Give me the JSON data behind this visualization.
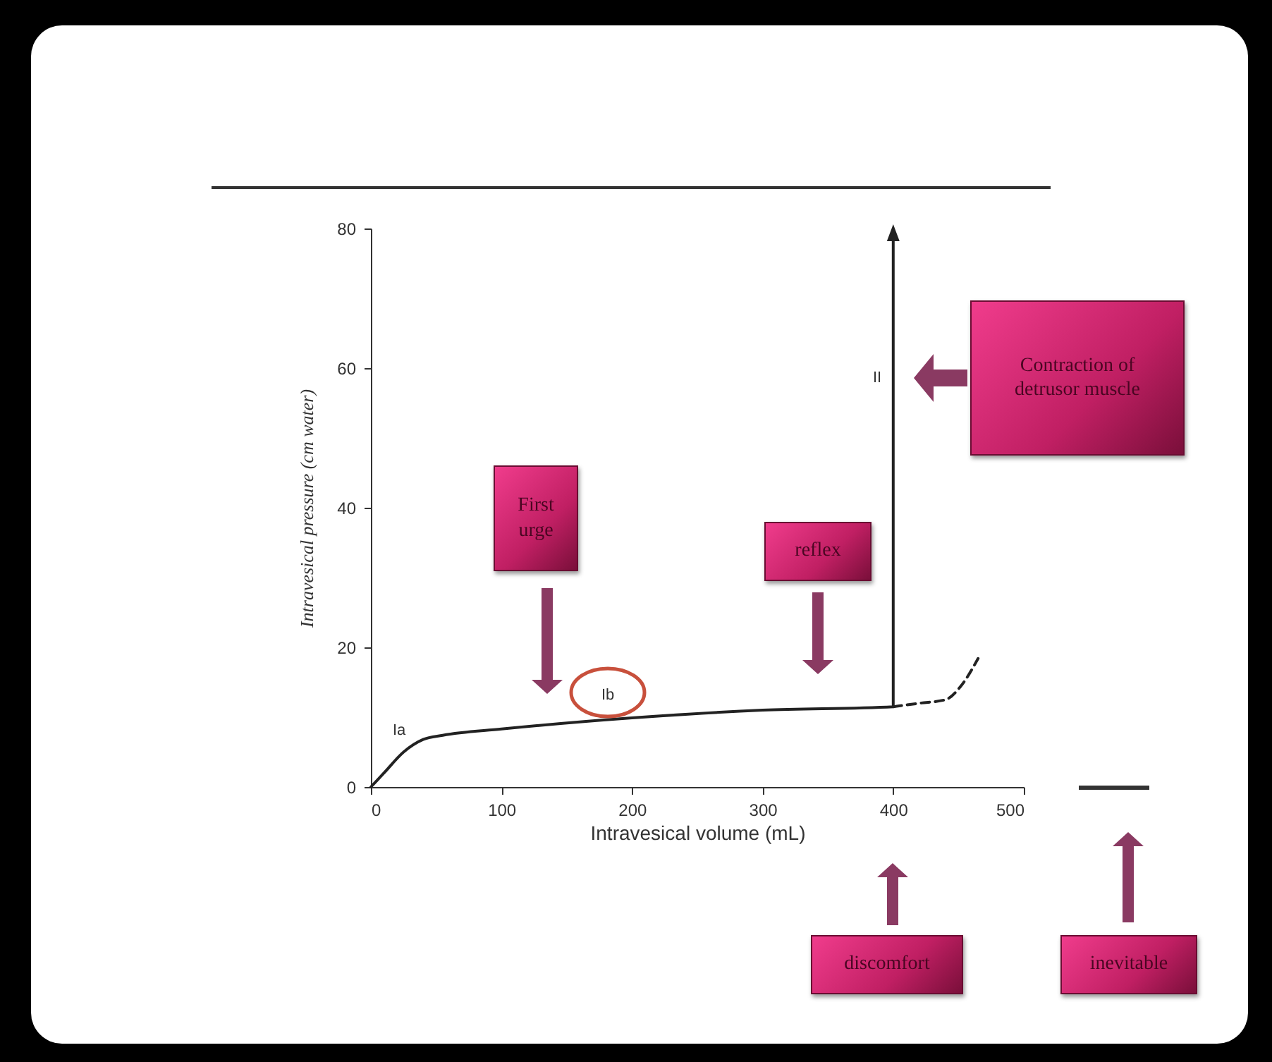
{
  "chart_data": {
    "type": "line",
    "xlabel": "Intravesical volume (mL)",
    "ylabel": "Intravesical pressure (cm water)",
    "xlim": [
      0,
      500
    ],
    "ylim": [
      0,
      80
    ],
    "xticks": [
      0,
      100,
      200,
      300,
      400,
      500
    ],
    "yticks": [
      0,
      20,
      40,
      60,
      80
    ],
    "grid": false,
    "marker": "none",
    "series": [
      {
        "color": "#222222",
        "line_style": "solid",
        "x": [
          0,
          10,
          25,
          40,
          55,
          100,
          200,
          300,
          400,
          400
        ],
        "values": [
          0,
          2,
          5,
          6.8,
          7.4,
          8.3,
          9.9,
          11,
          11.5,
          79
        ]
      },
      {
        "color": "#222222",
        "line_style": "dashed",
        "x": [
          400,
          420,
          440,
          452,
          465
        ],
        "values": [
          11.5,
          12,
          12.5,
          14.5,
          18.4
        ]
      }
    ],
    "annotations": [
      "Ia",
      "Ib",
      "II",
      "First urge",
      "reflex",
      "Contraction of detrusor muscle",
      "discomfort",
      "inevitable"
    ]
  }
}
